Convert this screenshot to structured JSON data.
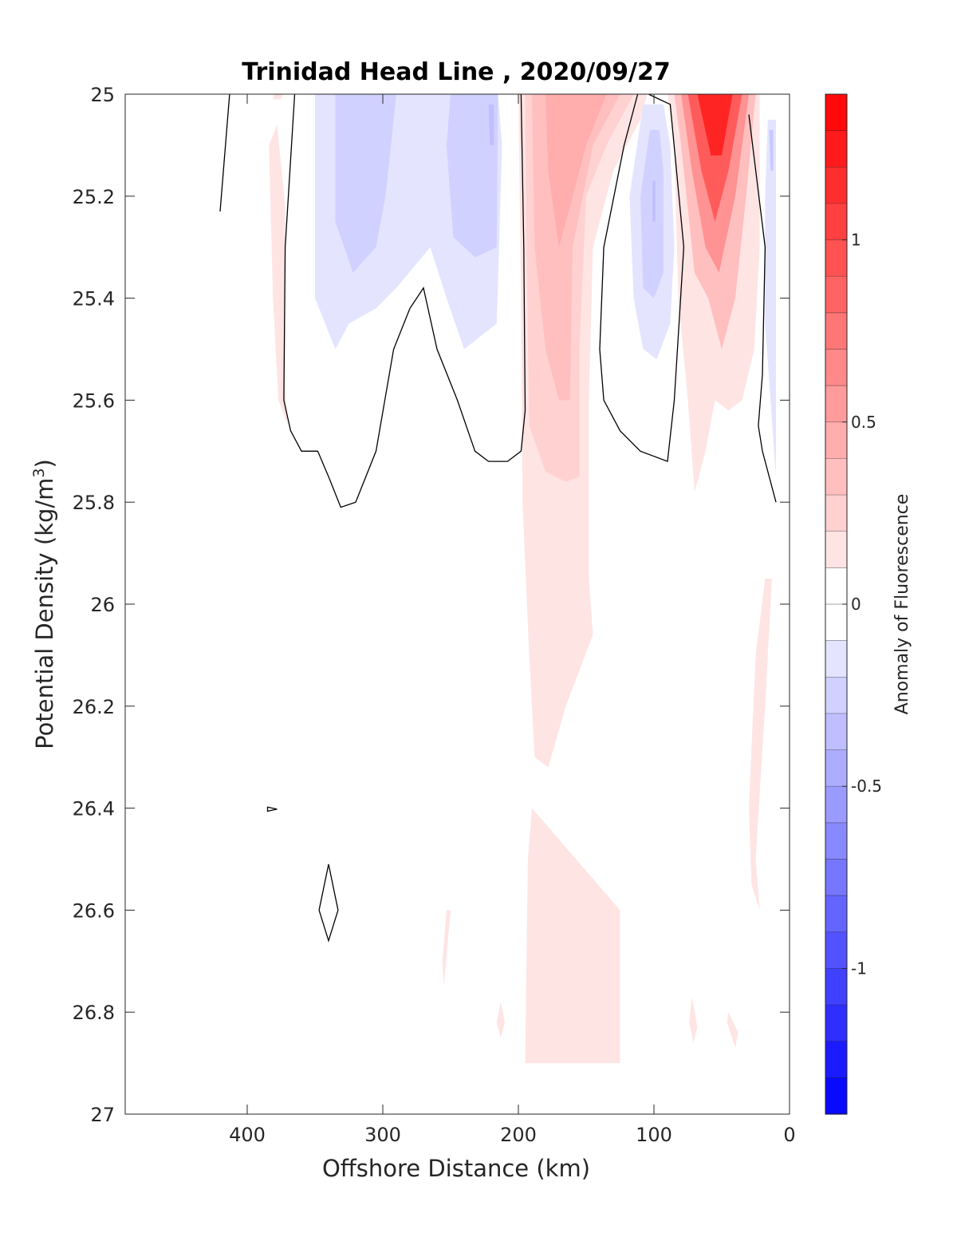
{
  "chart_data": {
    "type": "heatmap",
    "title": "Trinidad Head Line , 2020/09/27",
    "xlabel": "Offshore Distance (km)",
    "ylabel_main": "Potential Density (kg/m",
    "ylabel_sup": "3",
    "ylabel_close": ")",
    "colorbar_label": "Anomaly of Fluorescence",
    "xlim": [
      490,
      0
    ],
    "ylim": [
      25,
      27
    ],
    "x_reversed": true,
    "y_reversed": true,
    "xticks": [
      400,
      300,
      200,
      100,
      0
    ],
    "yticks": [
      25,
      25.2,
      25.4,
      25.6,
      25.8,
      26,
      26.2,
      26.4,
      26.6,
      26.8,
      27
    ],
    "ytick_labels": [
      "25",
      "25.2",
      "25.4",
      "25.6",
      "25.8",
      "26",
      "26.2",
      "26.4",
      "26.6",
      "26.8",
      "27"
    ],
    "colorbar": {
      "clim": [
        -1.4,
        1.4
      ],
      "levels": 28,
      "ticks": [
        1,
        0.5,
        0,
        -0.5,
        -1
      ],
      "tick_labels": [
        "1",
        "0.5",
        "0",
        "-0.5",
        "-1"
      ],
      "color_low": "#0000ff",
      "color_mid": "#ffffff",
      "color_high": "#ff0000"
    },
    "regions": [
      {
        "anomaly": 0.15,
        "points": [
          [
            380,
            25
          ],
          [
            374,
            25
          ],
          [
            375,
            25.01
          ],
          [
            381,
            25.01
          ]
        ]
      },
      {
        "anomaly": 0.15,
        "points": [
          [
            378,
            25.06
          ],
          [
            372,
            25.22
          ],
          [
            372,
            25.58
          ],
          [
            370,
            25.65
          ],
          [
            377,
            25.6
          ],
          [
            381,
            25.4
          ],
          [
            384,
            25.1
          ]
        ]
      },
      {
        "anomaly": -0.15,
        "points": [
          [
            350,
            25
          ],
          [
            215,
            25
          ],
          [
            212,
            25.1
          ],
          [
            216,
            25.45
          ],
          [
            240,
            25.5
          ],
          [
            253,
            25.4
          ],
          [
            265,
            25.3
          ],
          [
            290,
            25.38
          ],
          [
            305,
            25.42
          ],
          [
            325,
            25.45
          ],
          [
            335,
            25.5
          ],
          [
            350,
            25.4
          ]
        ]
      },
      {
        "anomaly": -0.25,
        "points": [
          [
            335,
            25
          ],
          [
            290,
            25
          ],
          [
            298,
            25.2
          ],
          [
            305,
            25.3
          ],
          [
            322,
            25.35
          ],
          [
            335,
            25.25
          ]
        ]
      },
      {
        "anomaly": -0.25,
        "points": [
          [
            250,
            25
          ],
          [
            215,
            25
          ],
          [
            216,
            25.3
          ],
          [
            232,
            25.32
          ],
          [
            248,
            25.28
          ],
          [
            253,
            25.1
          ]
        ]
      },
      {
        "anomaly": -0.35,
        "points": [
          [
            222,
            25.02
          ],
          [
            218,
            25.02
          ],
          [
            218,
            25.1
          ],
          [
            221,
            25.1
          ]
        ]
      },
      {
        "anomaly": 0.15,
        "points": [
          [
            200,
            25
          ],
          [
            105,
            25
          ],
          [
            110,
            25.05
          ],
          [
            130,
            25.15
          ],
          [
            145,
            25.3
          ],
          [
            148,
            25.6
          ],
          [
            148,
            25.95
          ],
          [
            145,
            26.06
          ],
          [
            165,
            26.2
          ],
          [
            178,
            26.32
          ],
          [
            188,
            26.3
          ],
          [
            192,
            26.1
          ],
          [
            197,
            25.8
          ],
          [
            198,
            25.4
          ]
        ]
      },
      {
        "anomaly": 0.25,
        "points": [
          [
            195,
            25
          ],
          [
            115,
            25
          ],
          [
            135,
            25.1
          ],
          [
            150,
            25.2
          ],
          [
            155,
            25.5
          ],
          [
            155,
            25.75
          ],
          [
            165,
            25.76
          ],
          [
            180,
            25.74
          ],
          [
            192,
            25.65
          ],
          [
            194,
            25.3
          ]
        ]
      },
      {
        "anomaly": 0.35,
        "points": [
          [
            190,
            25
          ],
          [
            125,
            25
          ],
          [
            145,
            25.1
          ],
          [
            160,
            25.3
          ],
          [
            162,
            25.6
          ],
          [
            170,
            25.6
          ],
          [
            180,
            25.5
          ],
          [
            188,
            25.3
          ]
        ]
      },
      {
        "anomaly": 0.45,
        "points": [
          [
            180,
            25
          ],
          [
            135,
            25
          ],
          [
            150,
            25.1
          ],
          [
            170,
            25.3
          ],
          [
            178,
            25.15
          ]
        ]
      },
      {
        "anomaly": -0.15,
        "points": [
          [
            108,
            25.02
          ],
          [
            93,
            25.02
          ],
          [
            88,
            25.1
          ],
          [
            85,
            25.3
          ],
          [
            88,
            25.45
          ],
          [
            98,
            25.52
          ],
          [
            108,
            25.5
          ],
          [
            115,
            25.4
          ],
          [
            118,
            25.2
          ]
        ]
      },
      {
        "anomaly": -0.25,
        "points": [
          [
            103,
            25.07
          ],
          [
            96,
            25.07
          ],
          [
            93,
            25.15
          ],
          [
            93,
            25.35
          ],
          [
            100,
            25.4
          ],
          [
            108,
            25.38
          ],
          [
            110,
            25.2
          ]
        ]
      },
      {
        "anomaly": -0.35,
        "points": [
          [
            101,
            25.17
          ],
          [
            99,
            25.17
          ],
          [
            99,
            25.25
          ],
          [
            101,
            25.25
          ]
        ]
      },
      {
        "anomaly": 0.15,
        "points": [
          [
            90,
            25
          ],
          [
            22,
            25
          ],
          [
            22,
            25.3
          ],
          [
            26,
            25.5
          ],
          [
            35,
            25.6
          ],
          [
            45,
            25.62
          ],
          [
            55,
            25.6
          ],
          [
            62,
            25.7
          ],
          [
            70,
            25.78
          ],
          [
            75,
            25.6
          ],
          [
            82,
            25.4
          ],
          [
            85,
            25.1
          ]
        ]
      },
      {
        "anomaly": 0.35,
        "points": [
          [
            85,
            25
          ],
          [
            25,
            25
          ],
          [
            32,
            25.2
          ],
          [
            40,
            25.4
          ],
          [
            50,
            25.5
          ],
          [
            60,
            25.4
          ],
          [
            70,
            25.35
          ],
          [
            80,
            25.1
          ]
        ]
      },
      {
        "anomaly": 0.6,
        "points": [
          [
            80,
            25
          ],
          [
            30,
            25
          ],
          [
            40,
            25.2
          ],
          [
            52,
            25.35
          ],
          [
            62,
            25.3
          ],
          [
            72,
            25.15
          ]
        ]
      },
      {
        "anomaly": 0.9,
        "points": [
          [
            75,
            25
          ],
          [
            35,
            25
          ],
          [
            45,
            25.15
          ],
          [
            55,
            25.25
          ],
          [
            65,
            25.15
          ]
        ]
      },
      {
        "anomaly": 1.2,
        "points": [
          [
            68,
            25
          ],
          [
            42,
            25
          ],
          [
            50,
            25.12
          ],
          [
            58,
            25.12
          ]
        ]
      },
      {
        "anomaly": -0.15,
        "points": [
          [
            16,
            25.05
          ],
          [
            10,
            25.05
          ],
          [
            10,
            25.75
          ],
          [
            14,
            25.6
          ],
          [
            18,
            25.45
          ],
          [
            18,
            25.2
          ]
        ]
      },
      {
        "anomaly": -0.3,
        "points": [
          [
            15,
            25.07
          ],
          [
            12,
            25.07
          ],
          [
            12,
            25.15
          ],
          [
            14,
            25.15
          ]
        ]
      },
      {
        "anomaly": 0.15,
        "points": [
          [
            18,
            25.95
          ],
          [
            13,
            25.95
          ],
          [
            18,
            26.2
          ],
          [
            25,
            26.5
          ],
          [
            22,
            26.6
          ],
          [
            28,
            26.55
          ],
          [
            30,
            26.4
          ],
          [
            25,
            26.1
          ]
        ]
      },
      {
        "anomaly": 0.15,
        "points": [
          [
            190,
            26.4
          ],
          [
            125,
            26.6
          ],
          [
            125,
            26.9
          ],
          [
            150,
            26.9
          ],
          [
            180,
            26.9
          ],
          [
            195,
            26.9
          ],
          [
            193,
            26.5
          ]
        ]
      },
      {
        "anomaly": 0.15,
        "points": [
          [
            253,
            26.6
          ],
          [
            250,
            26.6
          ],
          [
            255,
            26.75
          ],
          [
            256,
            26.7
          ]
        ]
      },
      {
        "anomaly": 0.15,
        "points": [
          [
            213,
            26.78
          ],
          [
            210,
            26.82
          ],
          [
            213,
            26.85
          ],
          [
            216,
            26.82
          ]
        ]
      },
      {
        "anomaly": 0.15,
        "points": [
          [
            72,
            26.77
          ],
          [
            68,
            26.83
          ],
          [
            71,
            26.86
          ],
          [
            74,
            26.82
          ]
        ]
      },
      {
        "anomaly": 0.15,
        "points": [
          [
            45,
            26.8
          ],
          [
            38,
            26.84
          ],
          [
            40,
            26.87
          ],
          [
            46,
            26.82
          ]
        ]
      }
    ],
    "zero_contours": [
      {
        "closed": false,
        "points": [
          [
            420,
            25.23
          ],
          [
            413,
            25
          ]
        ]
      },
      {
        "closed": false,
        "points": [
          [
            365,
            25
          ],
          [
            372,
            25.3
          ],
          [
            373,
            25.6
          ],
          [
            368,
            25.66
          ],
          [
            360,
            25.7
          ],
          [
            348,
            25.7
          ],
          [
            340,
            25.75
          ],
          [
            331,
            25.81
          ],
          [
            320,
            25.8
          ],
          [
            305,
            25.7
          ],
          [
            292,
            25.5
          ],
          [
            280,
            25.42
          ],
          [
            270,
            25.38
          ],
          [
            260,
            25.5
          ],
          [
            245,
            25.6
          ],
          [
            232,
            25.7
          ],
          [
            222,
            25.72
          ],
          [
            208,
            25.72
          ],
          [
            198,
            25.7
          ],
          [
            195,
            25.62
          ],
          [
            196,
            25.3
          ],
          [
            198,
            25
          ]
        ]
      },
      {
        "closed": false,
        "points": [
          [
            112,
            25
          ],
          [
            122,
            25.1
          ],
          [
            137,
            25.3
          ],
          [
            140,
            25.5
          ],
          [
            137,
            25.6
          ],
          [
            125,
            25.66
          ],
          [
            110,
            25.7
          ],
          [
            90,
            25.72
          ],
          [
            85,
            25.6
          ],
          [
            78,
            25.3
          ],
          [
            88,
            25.02
          ],
          [
            104,
            25
          ]
        ]
      },
      {
        "closed": false,
        "points": [
          [
            30,
            25.04
          ],
          [
            18,
            25.3
          ],
          [
            20,
            25.55
          ],
          [
            23,
            25.65
          ],
          [
            20,
            25.7
          ],
          [
            10,
            25.8
          ]
        ]
      },
      {
        "closed": true,
        "points": [
          [
            385,
            26.398
          ],
          [
            378,
            26.402
          ],
          [
            385,
            26.406
          ]
        ]
      },
      {
        "closed": true,
        "points": [
          [
            340,
            26.51
          ],
          [
            333,
            26.6
          ],
          [
            340,
            26.66
          ],
          [
            347,
            26.6
          ]
        ]
      }
    ]
  }
}
